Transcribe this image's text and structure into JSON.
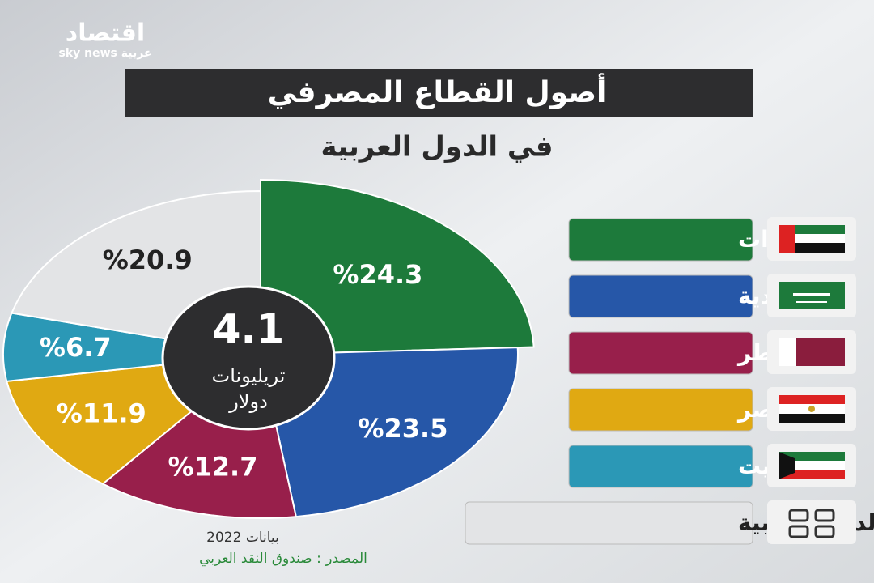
{
  "logo": {
    "name": "اقتصاد",
    "tagline": "sky news عربية"
  },
  "chart_data": {
    "type": "pie",
    "title": "أصول القطاع المصرفي",
    "subtitle": "في الدول العربية",
    "center_value": 4.1,
    "center_unit": "تريليونات دولار",
    "categories": [
      "الإمارات",
      "السعودية",
      "قطر",
      "مصر",
      "الكويت",
      "بقية الدول العربية"
    ],
    "values": [
      24.3,
      23.5,
      12.7,
      11.9,
      6.7,
      20.9
    ],
    "value_labels": [
      "%24.3",
      "%23.5",
      "%12.7",
      "%11.9",
      "%6.7",
      "%20.9"
    ],
    "colors": [
      "#1d7a3b",
      "#2657a8",
      "#981f4b",
      "#e0a912",
      "#2b98b6",
      "#e3e4e6"
    ],
    "note": "بيانات 2022",
    "source": "المصدر : صندوق النقد العربي"
  }
}
